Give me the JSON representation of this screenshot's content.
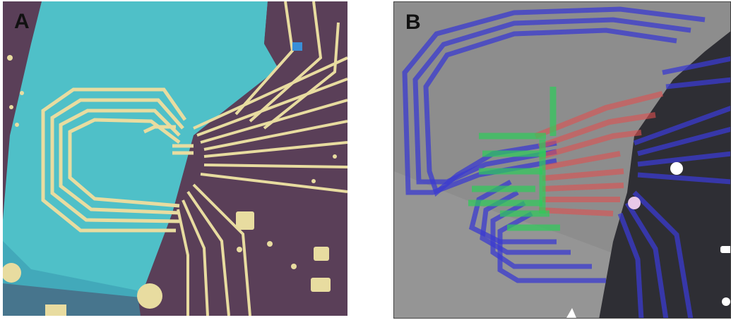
{
  "figure": {
    "panels": [
      {
        "label": "A",
        "description_free": true
      },
      {
        "label": "B",
        "description_free": true
      }
    ],
    "colors": {
      "substrate_purple": "#5a3f58",
      "flake_cyan": "#4fc0c8",
      "gold_trace": "#e8dca0",
      "sem_gray": "#8a8a8a",
      "dark_region": "#2e2e34",
      "blue_trace": "#3b3bd0",
      "green_trace": "#2ecc5a",
      "red_trace": "#e05050"
    }
  }
}
